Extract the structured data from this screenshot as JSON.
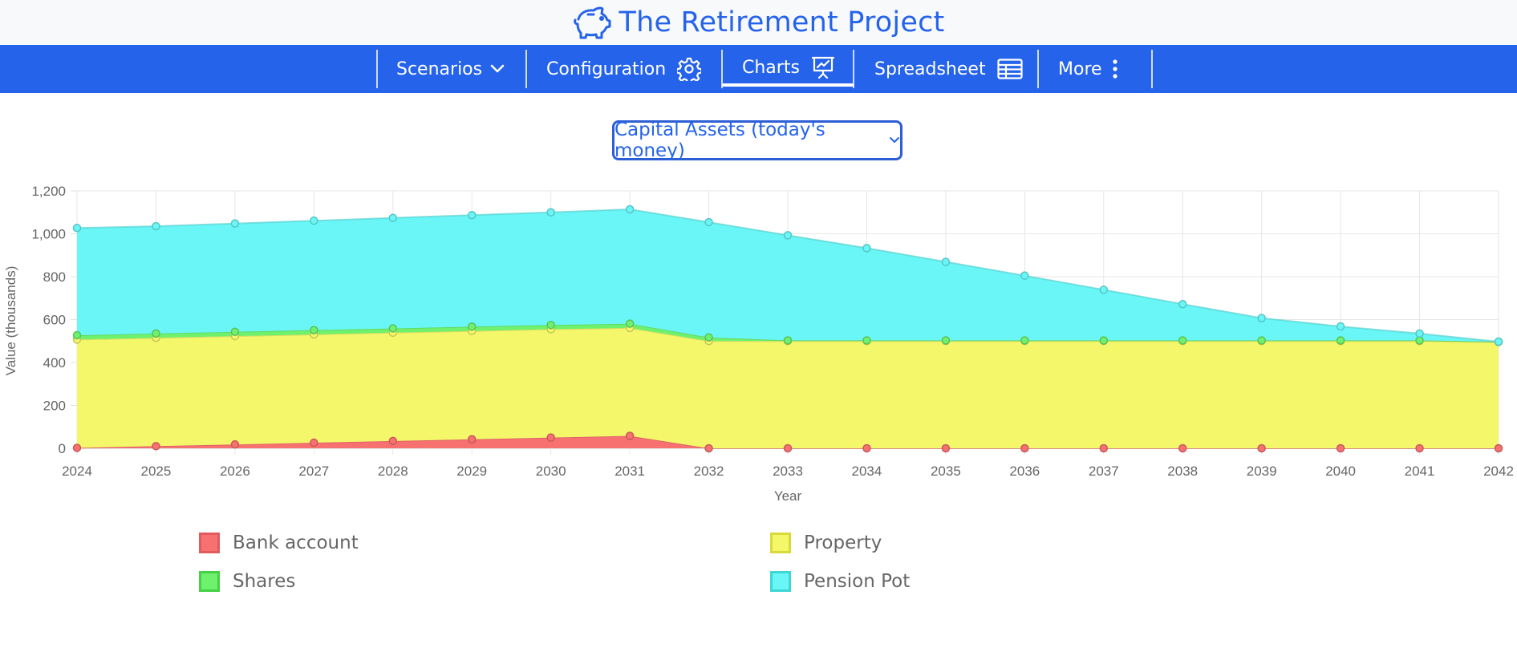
{
  "app": {
    "title": "The Retirement Project",
    "logo_icon": "piggy-bank-icon",
    "accent": "#2563eb"
  },
  "nav": {
    "items": [
      {
        "label": "Scenarios",
        "icon": "chevron-down-icon"
      },
      {
        "label": "Configuration",
        "icon": "gear-icon"
      },
      {
        "label": "Charts",
        "icon": "presentation-chart-icon",
        "active": true
      },
      {
        "label": "Spreadsheet",
        "icon": "table-icon"
      },
      {
        "label": "More",
        "icon": "vertical-dots-icon"
      }
    ]
  },
  "chart_selector": {
    "value": "Capital Assets (today's money)",
    "icon": "chevron-down-icon"
  },
  "chart_data": {
    "type": "area",
    "stacked": true,
    "xlabel": "Year",
    "ylabel": "Value (thousands)",
    "ylim": [
      0,
      1200
    ],
    "yticks": [
      "0",
      "200",
      "400",
      "600",
      "800",
      "1,000",
      "1,200"
    ],
    "categories": [
      "2024",
      "2025",
      "2026",
      "2027",
      "2028",
      "2029",
      "2030",
      "2031",
      "2032",
      "2033",
      "2034",
      "2035",
      "2036",
      "2037",
      "2038",
      "2039",
      "2040",
      "2041",
      "2042"
    ],
    "grid": true,
    "legend_position": "bottom",
    "series": [
      {
        "name": "Bank account",
        "color": "#f87171",
        "values": [
          2,
          10,
          18,
          26,
          34,
          42,
          50,
          58,
          0,
          0,
          0,
          0,
          0,
          0,
          0,
          0,
          0,
          0,
          0
        ]
      },
      {
        "name": "Property",
        "color": "#f5f76a",
        "values": [
          505,
          505,
          505,
          505,
          505,
          505,
          505,
          503,
          500,
          500,
          500,
          500,
          500,
          500,
          500,
          500,
          500,
          500,
          495
        ]
      },
      {
        "name": "Shares",
        "color": "#6ef26e",
        "values": [
          20,
          20,
          20,
          20,
          20,
          20,
          20,
          20,
          17,
          3,
          3,
          3,
          3,
          3,
          3,
          3,
          3,
          3,
          2
        ]
      },
      {
        "name": "Pension Pot",
        "color": "#6af6f6",
        "values": [
          500,
          500,
          505,
          510,
          515,
          520,
          525,
          533,
          537,
          490,
          430,
          366,
          302,
          236,
          169,
          104,
          65,
          32,
          0
        ]
      }
    ]
  }
}
